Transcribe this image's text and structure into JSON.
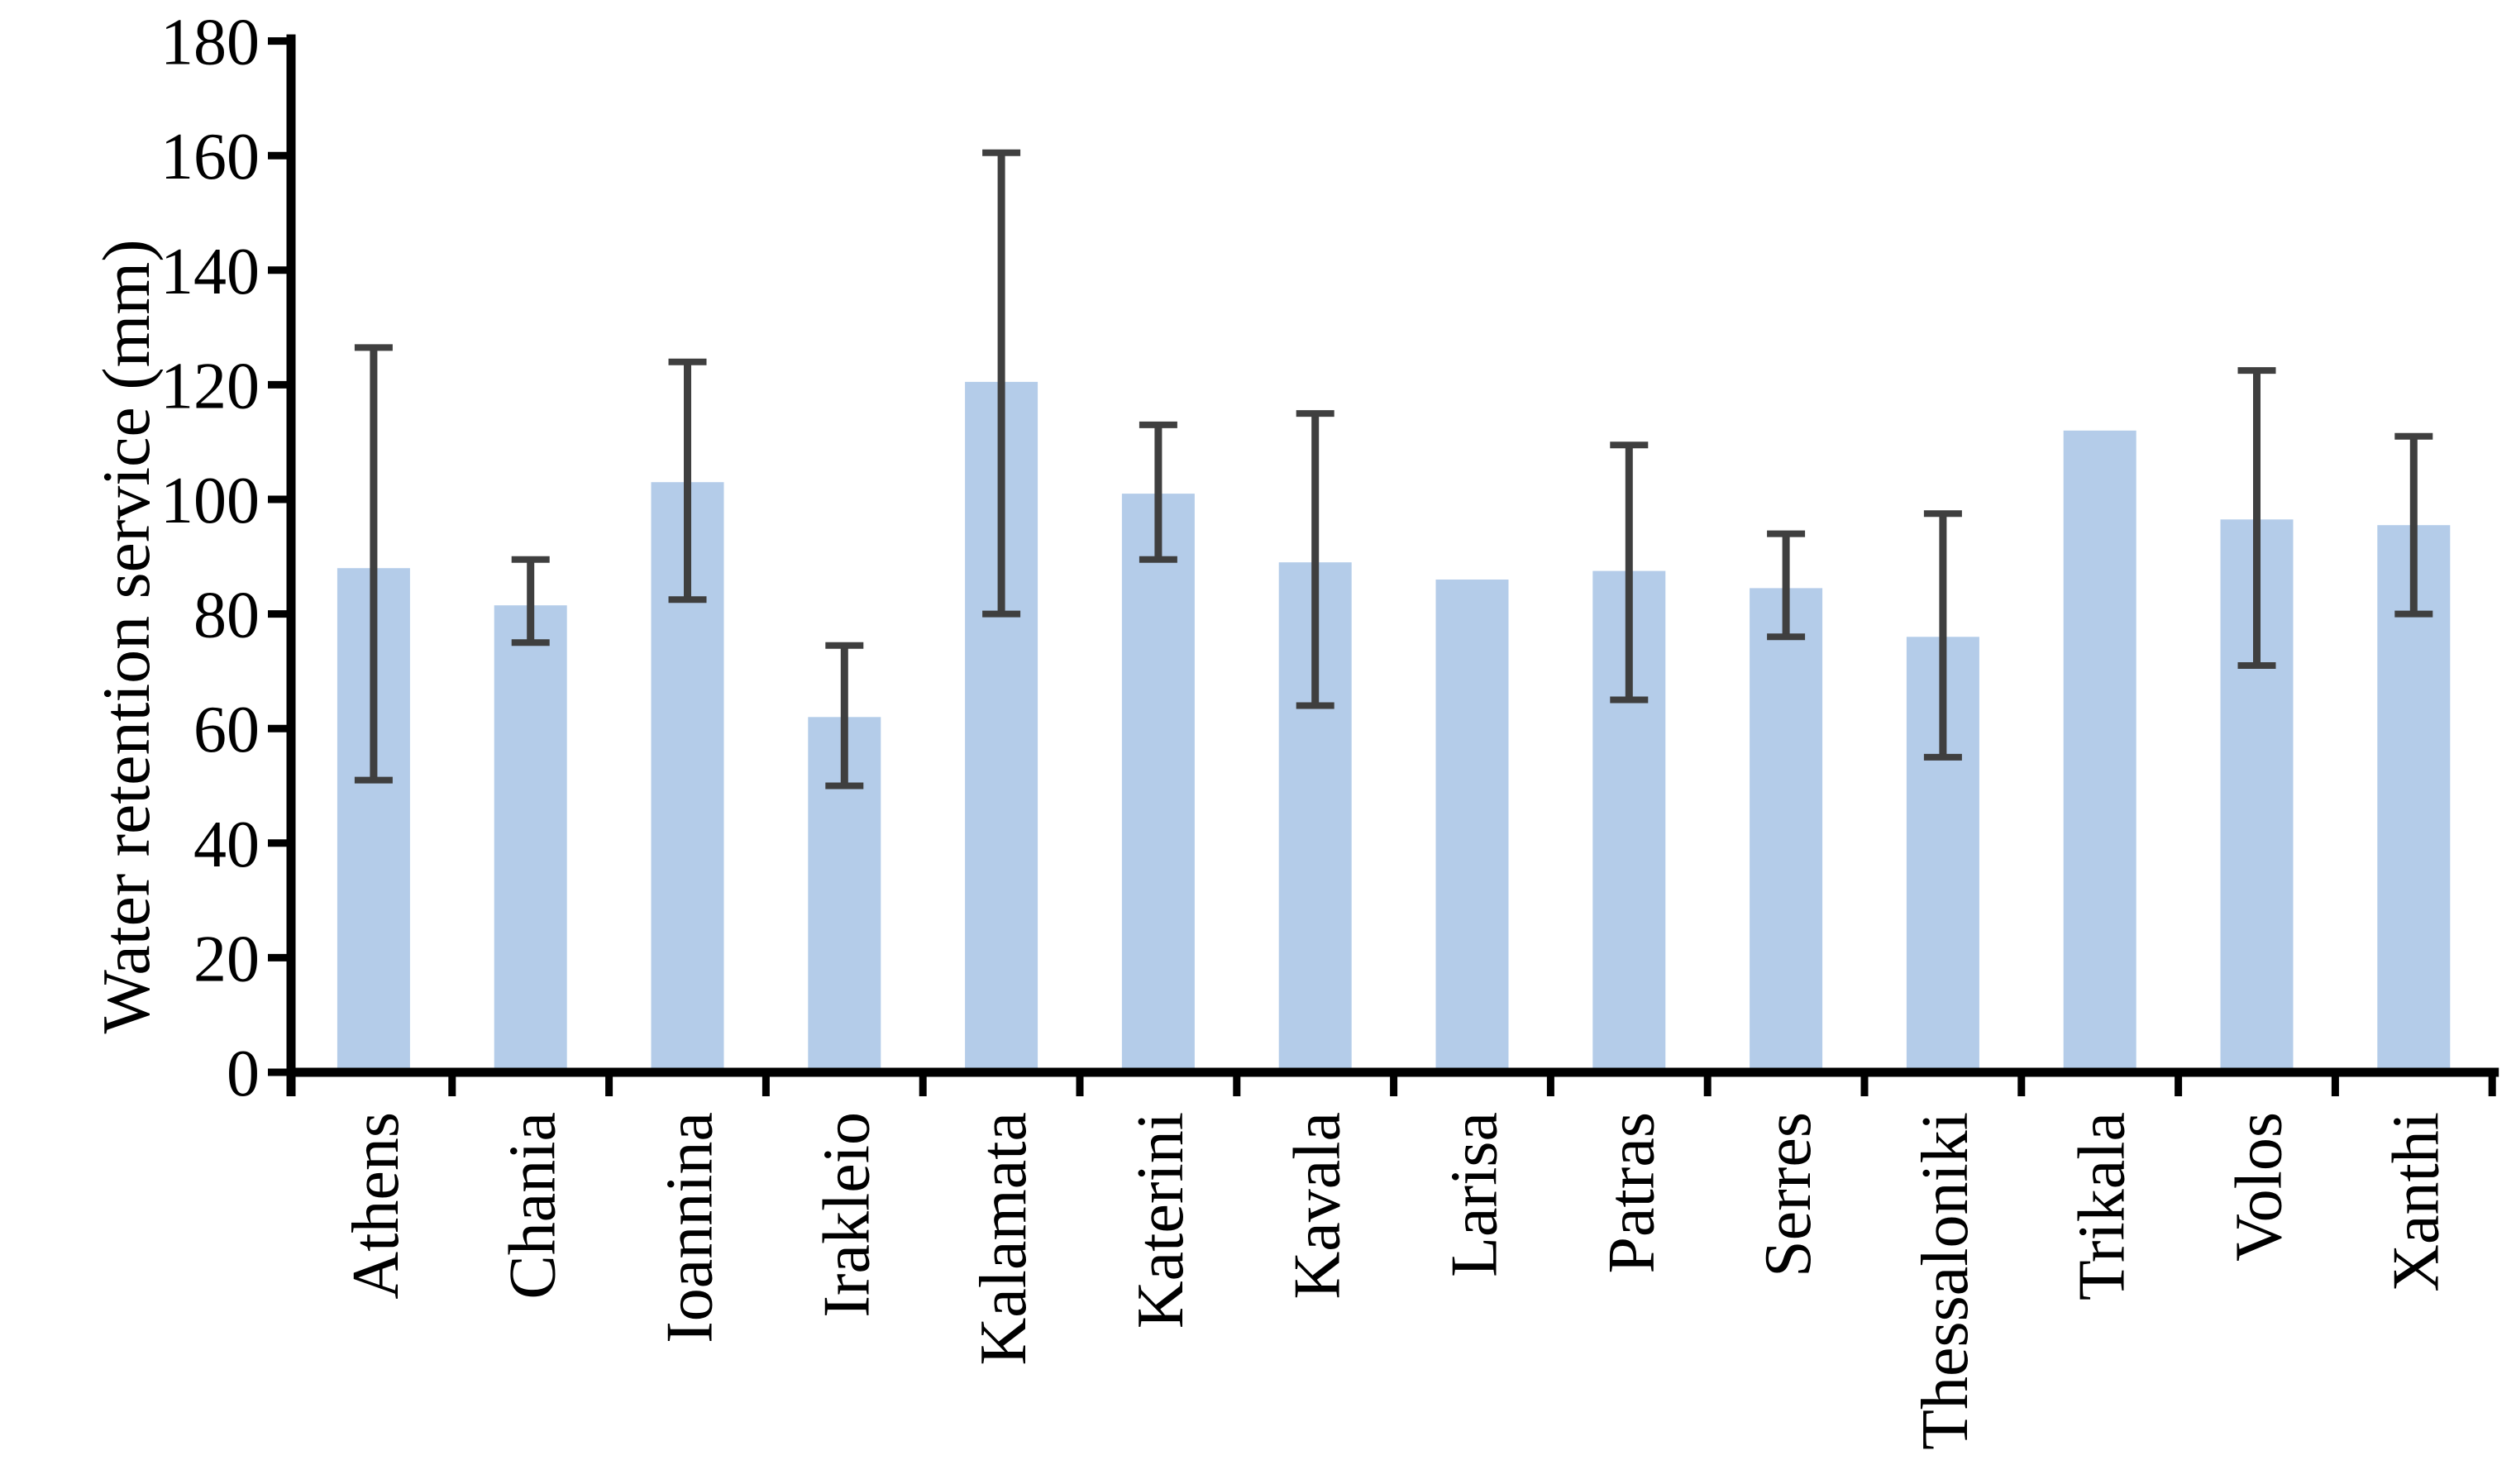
{
  "chart_data": {
    "type": "bar",
    "title": "",
    "xlabel": "",
    "ylabel": "Water retention service (mm)",
    "categories": [
      "Athens",
      "Chania",
      "Ioannina",
      "Irakleio",
      "Kalamata",
      "Katerini",
      "Kavala",
      "Larisa",
      "Patras",
      "Serres",
      "Thessaloniki",
      "Trikala",
      "Volos",
      "Xanthi"
    ],
    "series": [
      {
        "name": "Water retention service (mm)",
        "values": [
          88,
          81.5,
          103,
          62,
          120.5,
          101,
          89,
          86,
          87.5,
          84.5,
          76,
          112,
          96.5,
          95.5
        ],
        "error_low": [
          51,
          75,
          82.5,
          50,
          80,
          89.5,
          64,
          null,
          65,
          76,
          55,
          null,
          71,
          80
        ],
        "error_high": [
          126.5,
          89.5,
          124,
          74.5,
          160.5,
          113,
          115,
          null,
          109.5,
          94,
          97.5,
          null,
          122.5,
          111
        ]
      }
    ],
    "ylim": [
      0,
      180
    ],
    "ytick_step": 20,
    "ytick_labels": [
      0,
      20,
      40,
      60,
      80,
      100,
      120,
      140,
      160,
      180
    ],
    "grid": false,
    "legend": false,
    "bar_color": "#b4cce9",
    "error_bar_color": "#3f3f3f",
    "axis_color": "#000000"
  }
}
